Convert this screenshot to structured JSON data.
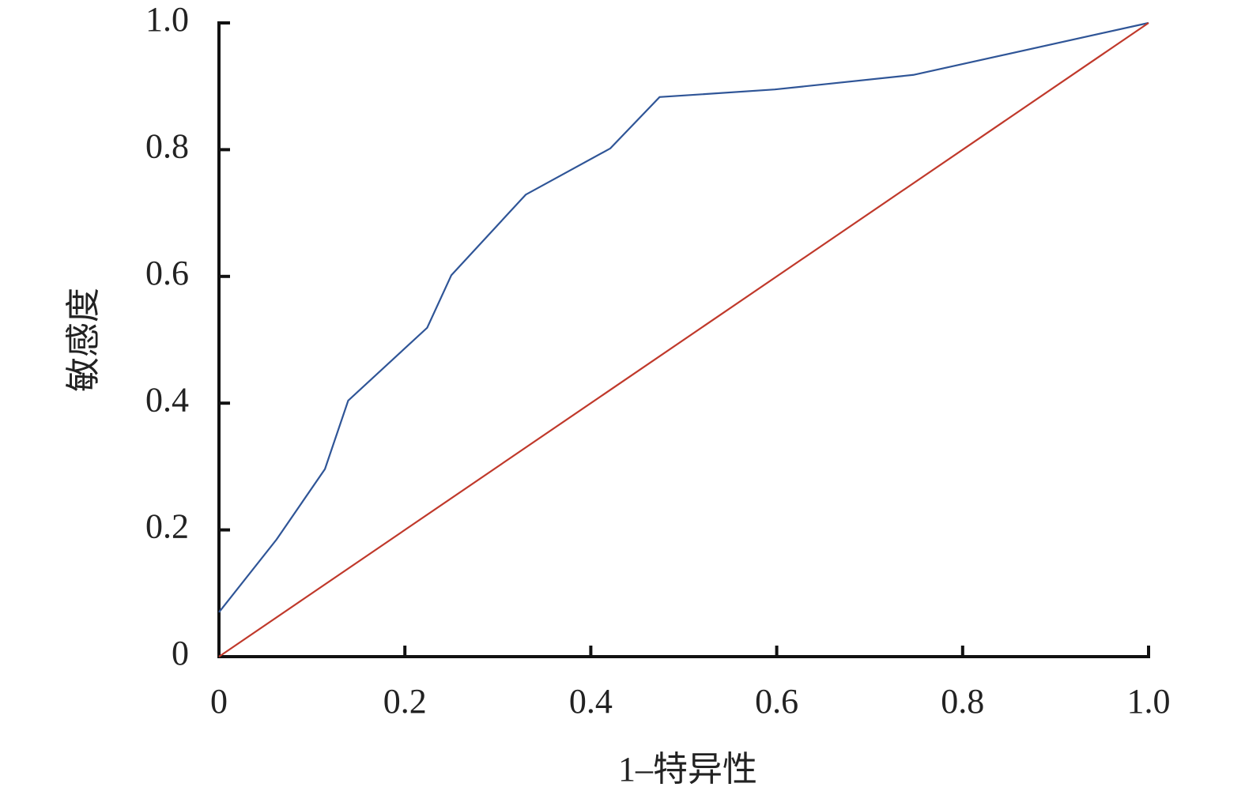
{
  "chart_data": {
    "type": "line",
    "x_label": "1–特异性",
    "y_label": "敏感度",
    "xlim": [
      0,
      1
    ],
    "ylim": [
      0,
      1
    ],
    "xticks": [
      0,
      0.2,
      0.4,
      0.6,
      0.8,
      {
        "value": 1,
        "label": "1.0"
      }
    ],
    "yticks": [
      0,
      0.2,
      0.4,
      0.6,
      0.8,
      {
        "value": 1,
        "label": "1.0"
      }
    ],
    "grid": false,
    "series": [
      {
        "color": "#2f5597",
        "x": [
          0,
          0.062,
          0.114,
          0.139,
          0.224,
          0.25,
          0.33,
          0.421,
          0.474,
          0.598,
          0.747,
          1
        ],
        "values": [
          0.07,
          0.185,
          0.296,
          0.404,
          0.519,
          0.602,
          0.729,
          0.802,
          0.883,
          0.895,
          0.918,
          1
        ]
      },
      {
        "color": "#c0392b",
        "x": [
          0,
          1
        ],
        "values": [
          0,
          1
        ]
      }
    ]
  }
}
